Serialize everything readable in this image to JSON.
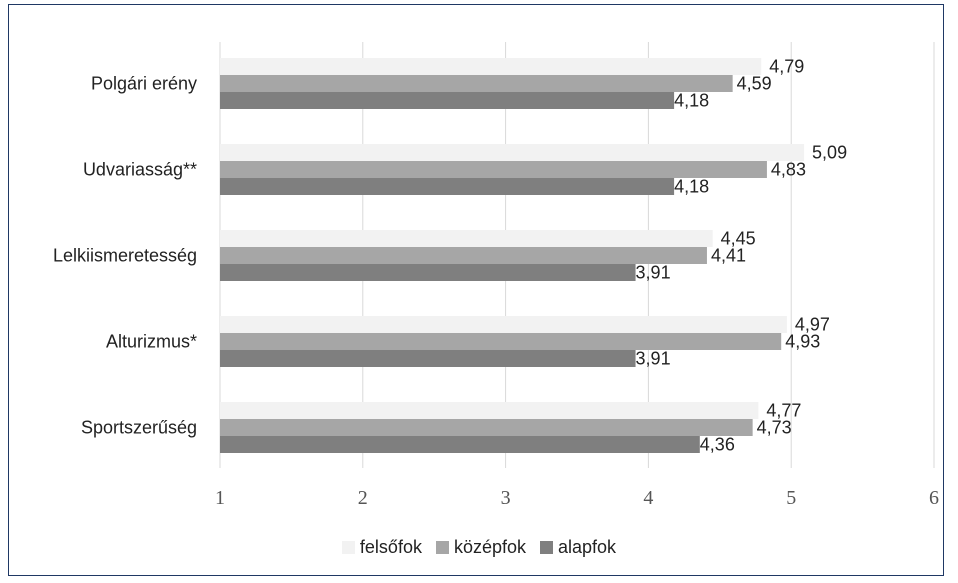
{
  "chart_data": {
    "type": "bar",
    "orientation": "horizontal",
    "categories": [
      "Polgári erény",
      "Udvariasság**",
      "Lelkiismeretesség",
      "Alturizmus*",
      "Sportszerűség"
    ],
    "series": [
      {
        "name": "felsőfok",
        "color": "#f2f2f2",
        "values": [
          4.79,
          5.09,
          4.45,
          4.97,
          4.77
        ],
        "labels": [
          "4,79",
          "5,09",
          "4,45",
          "4,97",
          "4,77"
        ]
      },
      {
        "name": "középfok",
        "color": "#a6a6a6",
        "values": [
          4.59,
          4.83,
          4.41,
          4.93,
          4.73
        ],
        "labels": [
          "4,59",
          "4,83",
          "4,41",
          "4,93",
          "4,73"
        ]
      },
      {
        "name": "alapfok",
        "color": "#7f7f7f",
        "values": [
          4.18,
          4.18,
          3.91,
          3.91,
          4.36
        ],
        "labels": [
          "4,18",
          "4,18",
          "3,91",
          "3,91",
          "4,36"
        ]
      }
    ],
    "xlim": [
      1,
      6
    ],
    "xticks": [
      "1",
      "2",
      "3",
      "4",
      "5",
      "6"
    ],
    "grid": "vertical",
    "legend_position": "bottom"
  }
}
